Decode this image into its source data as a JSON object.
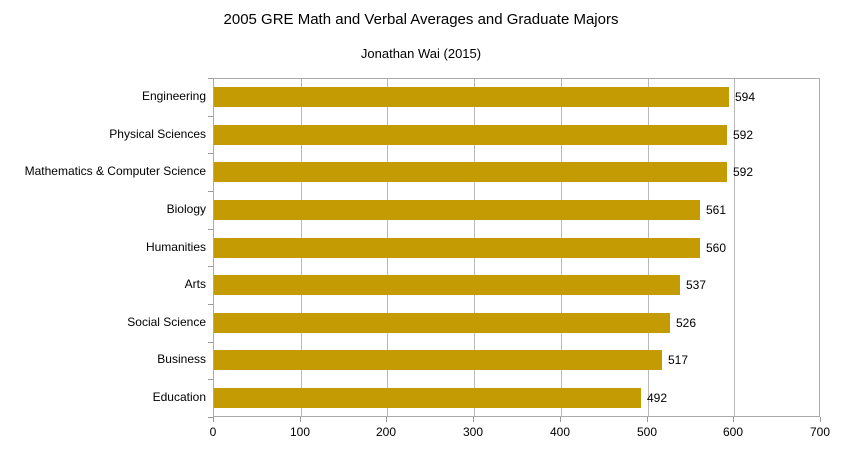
{
  "title": "2005 GRE Math and Verbal Averages and Graduate Majors",
  "subtitle": "Jonathan Wai (2015)",
  "chart_data": {
    "type": "bar",
    "orientation": "horizontal",
    "title": "2005 GRE Math and Verbal Averages and Graduate Majors",
    "subtitle": "Jonathan Wai (2015)",
    "categories": [
      "Engineering",
      "Physical Sciences",
      "Mathematics & Computer Science",
      "Biology",
      "Humanities",
      "Arts",
      "Social Science",
      "Business",
      "Education"
    ],
    "values": [
      594,
      592,
      592,
      561,
      560,
      537,
      526,
      517,
      492
    ],
    "value_labels_shown": true,
    "xlim": [
      0,
      700
    ],
    "x_ticks": [
      0,
      100,
      200,
      300,
      400,
      500,
      600,
      700
    ],
    "xlabel": "",
    "ylabel": "",
    "grid": "vertical",
    "legend": "none",
    "colors": {
      "bar": "#C59B04",
      "gridline": "#B9B9B9",
      "plot_border": "#ABABAB",
      "tick": "#999999",
      "text": "#000000",
      "background": "#FFFFFF"
    }
  }
}
